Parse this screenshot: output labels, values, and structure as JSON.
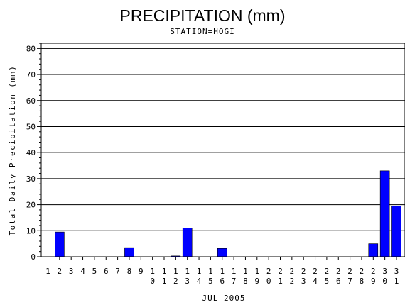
{
  "chart_data": {
    "type": "bar",
    "title": "PRECIPITATION (mm)",
    "subtitle": "STATION=HOGI",
    "xlabel": "JUL 2005",
    "ylabel": "Total Daily Precipitation (mm)",
    "ylim": [
      0,
      82
    ],
    "yticks": [
      0,
      10,
      20,
      30,
      40,
      50,
      60,
      70,
      80
    ],
    "grid": true,
    "bar_color": "#0000ff",
    "categories": [
      "1",
      "2",
      "3",
      "4",
      "5",
      "6",
      "7",
      "8",
      "9",
      "10",
      "11",
      "12",
      "13",
      "14",
      "15",
      "16",
      "17",
      "18",
      "19",
      "20",
      "21",
      "22",
      "23",
      "24",
      "25",
      "26",
      "27",
      "28",
      "29",
      "30",
      "31"
    ],
    "values": [
      0,
      9.5,
      0,
      0,
      0,
      0,
      0,
      3.5,
      0,
      0,
      0,
      0.3,
      11,
      0,
      0,
      3.2,
      0,
      0,
      0,
      0,
      0,
      0,
      0,
      0,
      0,
      0,
      0,
      0,
      5,
      33,
      19.5
    ]
  }
}
